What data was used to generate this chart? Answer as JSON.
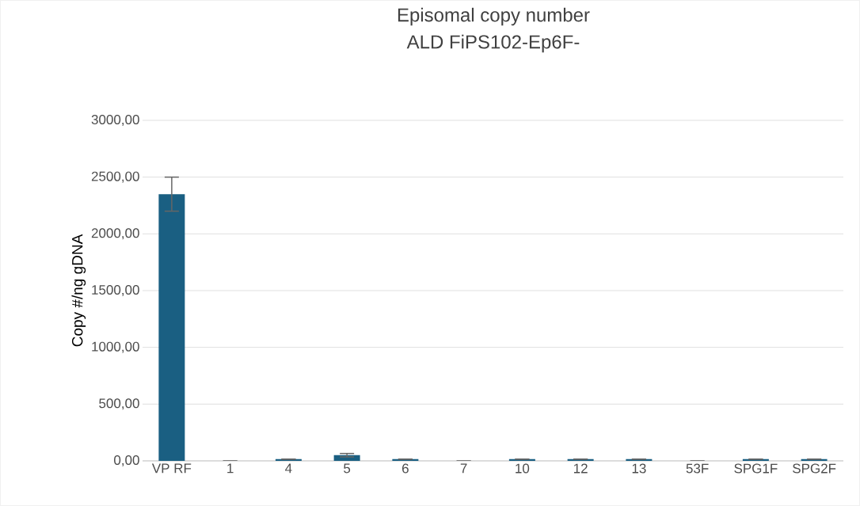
{
  "chart_data": {
    "type": "bar",
    "title": "Episomal copy number",
    "subtitle": "ALD FiPS102-Ep6F-",
    "ylabel": "Copy #/ng gDNA",
    "categories": [
      "VP RF",
      "1",
      "4",
      "5",
      "6",
      "7",
      "10",
      "12",
      "13",
      "53F",
      "SPG1F",
      "SPG2F"
    ],
    "values": [
      2350,
      0,
      15,
      50,
      15,
      0,
      15,
      15,
      15,
      0,
      15,
      15
    ],
    "errors": [
      150,
      null,
      null,
      15,
      null,
      null,
      null,
      null,
      null,
      null,
      null,
      null
    ],
    "color": "#1a5f82",
    "ylim": [
      0,
      3000
    ],
    "yticks": [
      {
        "value": 0,
        "label": "0,00"
      },
      {
        "value": 500,
        "label": "500,00"
      },
      {
        "value": 1000,
        "label": "1000,00"
      },
      {
        "value": 1500,
        "label": "1500,00"
      },
      {
        "value": 2000,
        "label": "2000,00"
      },
      {
        "value": 2500,
        "label": "2500,00"
      },
      {
        "value": 3000,
        "label": "3000,00"
      }
    ],
    "grid": "y"
  }
}
